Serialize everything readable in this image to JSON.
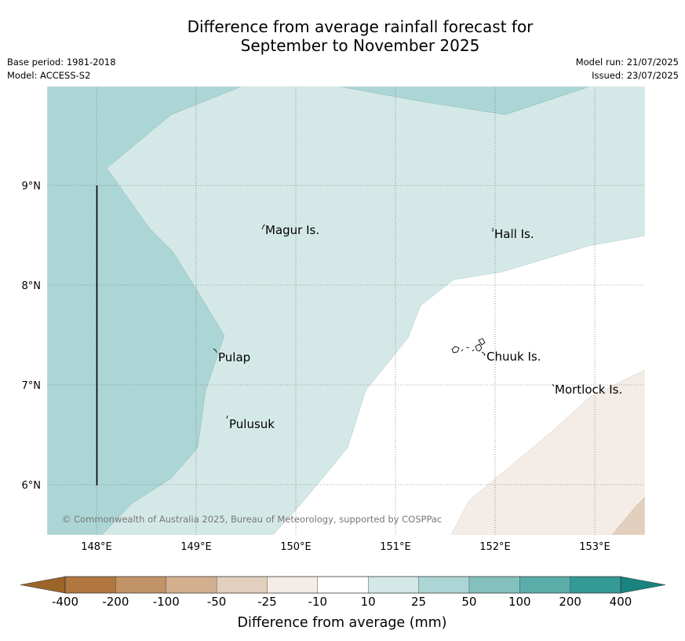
{
  "title": {
    "line1": "Difference from average rainfall forecast for",
    "line2": "September to November 2025"
  },
  "meta": {
    "base_period": "Base period: 1981-2018",
    "model": "Model: ACCESS-S2",
    "model_run": "Model run: 21/07/2025",
    "issued": "Issued: 23/07/2025"
  },
  "map": {
    "x_ticks": [
      "148°E",
      "149°E",
      "150°E",
      "151°E",
      "152°E",
      "153°E"
    ],
    "y_ticks": [
      "9°N",
      "8°N",
      "7°N",
      "6°N"
    ],
    "places": [
      {
        "name": "Magur Is."
      },
      {
        "name": "Hall Is."
      },
      {
        "name": "Pulap"
      },
      {
        "name": "Chuuk Is."
      },
      {
        "name": "Mortlock Is."
      },
      {
        "name": "Pulusuk"
      }
    ],
    "copyright": "© Commonwealth of Australia 2025, Bureau of Meteorology, supported by COSPPac"
  },
  "colorbar": {
    "title": "Difference from average (mm)",
    "labels": [
      "-400",
      "-200",
      "-100",
      "-50",
      "-25",
      "-10",
      "10",
      "25",
      "50",
      "100",
      "200",
      "400"
    ],
    "colors": [
      "#b07840",
      "#c29366",
      "#d2b08e",
      "#e3cfbd",
      "#f4ece6",
      "#ffffff",
      "#d4e9e7",
      "#acd6d5",
      "#84c0be",
      "#5bada9",
      "#339a96"
    ],
    "under_color": "#9b6428",
    "over_color": "#18837f"
  }
}
